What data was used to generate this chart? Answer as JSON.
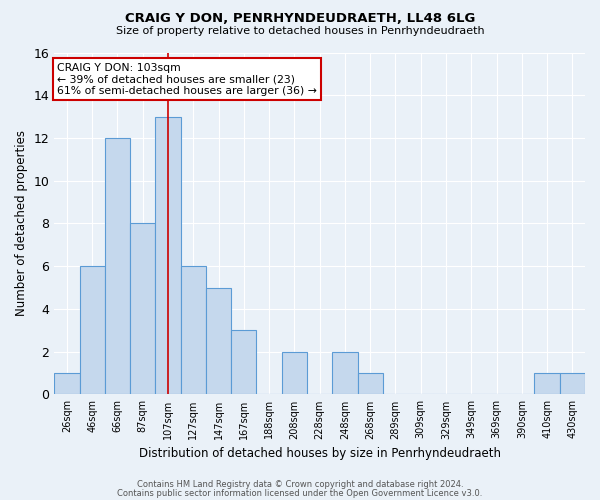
{
  "title": "CRAIG Y DON, PENRHYNDEUDRAETH, LL48 6LG",
  "subtitle": "Size of property relative to detached houses in Penrhyndeudraeth",
  "xlabel": "Distribution of detached houses by size in Penrhyndeudraeth",
  "ylabel": "Number of detached properties",
  "categories": [
    "26sqm",
    "46sqm",
    "66sqm",
    "87sqm",
    "107sqm",
    "127sqm",
    "147sqm",
    "167sqm",
    "188sqm",
    "208sqm",
    "228sqm",
    "248sqm",
    "268sqm",
    "289sqm",
    "309sqm",
    "329sqm",
    "349sqm",
    "369sqm",
    "390sqm",
    "410sqm",
    "430sqm"
  ],
  "values": [
    1,
    6,
    12,
    8,
    13,
    6,
    5,
    3,
    0,
    2,
    0,
    2,
    1,
    0,
    0,
    0,
    0,
    0,
    0,
    1,
    1
  ],
  "bar_color": "#c5d8ed",
  "bar_edge_color": "#5b9bd5",
  "background_color": "#eaf1f8",
  "grid_color": "#ffffff",
  "ylim": [
    0,
    16
  ],
  "yticks": [
    0,
    2,
    4,
    6,
    8,
    10,
    12,
    14,
    16
  ],
  "annotation_line1": "CRAIG Y DON: 103sqm",
  "annotation_line2": "← 39% of detached houses are smaller (23)",
  "annotation_line3": "61% of semi-detached houses are larger (36) →",
  "annotation_box_color": "#ffffff",
  "annotation_box_edge_color": "#cc0000",
  "red_line_x": 4,
  "footer_line1": "Contains HM Land Registry data © Crown copyright and database right 2024.",
  "footer_line2": "Contains public sector information licensed under the Open Government Licence v3.0."
}
